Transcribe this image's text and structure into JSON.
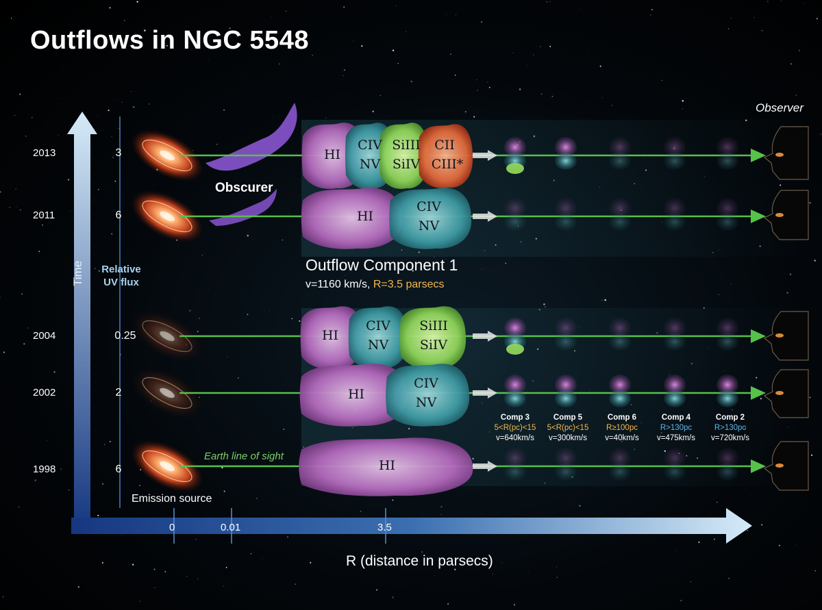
{
  "title": "Outflows in NGC 5548",
  "axes": {
    "time_label": "Time",
    "flux_label_line1": "Relative",
    "flux_label_line2": "UV flux",
    "x_label": "R (distance in parsecs)",
    "x_ticks": [
      "0",
      "0.01",
      "3.5"
    ]
  },
  "rows": [
    {
      "year": "2013",
      "flux": "3"
    },
    {
      "year": "2011",
      "flux": "6"
    },
    {
      "year": "2004",
      "flux": "0.25"
    },
    {
      "year": "2002",
      "flux": "2"
    },
    {
      "year": "1998",
      "flux": "6"
    }
  ],
  "labels": {
    "obscurer": "Obscurer",
    "observer": "Observer",
    "emission_source": "Emission source",
    "line_of_sight": "Earth line of sight"
  },
  "component1": {
    "name": "Outflow Component 1",
    "velocity": "v=1160 km/s,",
    "distance": "R=3.5 parsecs"
  },
  "ions": {
    "r2013": {
      "a": "HI",
      "b1": "CIV",
      "b2": "NV",
      "c1": "SiIII",
      "c2": "SiIV",
      "d1": "CII",
      "d2": "CIII*"
    },
    "r2011": {
      "a": "HI",
      "b1": "CIV",
      "b2": "NV"
    },
    "r2004": {
      "a": "HI",
      "b1": "CIV",
      "b2": "NV",
      "c1": "SiIII",
      "c2": "SiIV"
    },
    "r2002": {
      "a": "HI",
      "b1": "CIV",
      "b2": "NV"
    },
    "r1998": {
      "a": "HI"
    }
  },
  "components": [
    {
      "name": "Comp 3",
      "range": "5<R(pc)<15",
      "velocity": "v=640km/s"
    },
    {
      "name": "Comp 5",
      "range": "5<R(pc)<15",
      "velocity": "v=300km/s"
    },
    {
      "name": "Comp 6",
      "range": "R≥100pc",
      "velocity": "v=40km/s"
    },
    {
      "name": "Comp 4",
      "range": "R>130pc",
      "velocity": "v=475km/s"
    },
    {
      "name": "Comp 2",
      "range": "R>130pc",
      "velocity": "v=720km/s"
    }
  ],
  "colors": {
    "axis_light": "#cfe6f6",
    "axis_dark": "#1b3f85",
    "sightline": "#56c24a",
    "hi_cloud": "#b46bbd",
    "civ_cloud": "#3e9aa3",
    "si_cloud": "#8fd45a",
    "c_cloud": "#e06a3c",
    "orange_text": "#f4b94c",
    "blue_text": "#5fb6ea"
  }
}
